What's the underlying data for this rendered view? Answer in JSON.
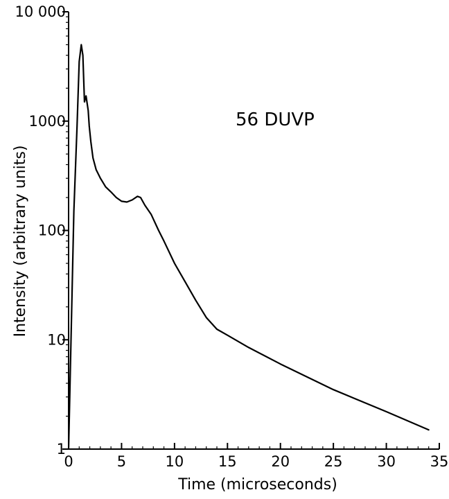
{
  "chart_data": {
    "type": "line",
    "title": "",
    "xlabel": "Time (microseconds)",
    "ylabel": "Intensity (arbitrary units)",
    "annotation": "56 DUVP",
    "xlim": [
      0,
      35
    ],
    "ylim": [
      1,
      10000
    ],
    "yscale": "log",
    "grid": false,
    "x_ticks": [
      0,
      5,
      10,
      15,
      20,
      25,
      30,
      35
    ],
    "x_tick_labels": [
      "0",
      "5",
      "10",
      "15",
      "20",
      "25",
      "30",
      "35"
    ],
    "y_ticks": [
      1,
      10,
      100,
      1000,
      10000
    ],
    "y_tick_labels": [
      "1",
      "10",
      "100",
      "1000",
      "10 000"
    ],
    "series": [
      {
        "x": [
          0.0,
          0.5,
          0.8,
          1.0,
          1.2,
          1.35,
          1.5,
          1.65,
          1.75,
          1.85,
          1.95,
          2.1,
          2.3,
          2.6,
          3.0,
          3.5,
          4.0,
          4.5,
          5.0,
          5.5,
          6.0,
          6.5,
          6.8,
          7.2,
          7.8,
          8.5,
          9.0,
          10.0,
          11.0,
          12.0,
          13.0,
          14.0,
          15.0,
          17.0,
          20.0,
          25.0,
          30.0,
          34.0
        ],
        "y": [
          1,
          150,
          900,
          3500,
          5000,
          4000,
          1500,
          1700,
          1450,
          1250,
          900,
          650,
          460,
          360,
          300,
          250,
          225,
          200,
          185,
          182,
          190,
          205,
          200,
          170,
          140,
          100,
          80,
          50,
          34,
          23,
          16,
          12.5,
          11,
          8.5,
          6,
          3.5,
          2.2,
          1.5
        ]
      }
    ]
  }
}
